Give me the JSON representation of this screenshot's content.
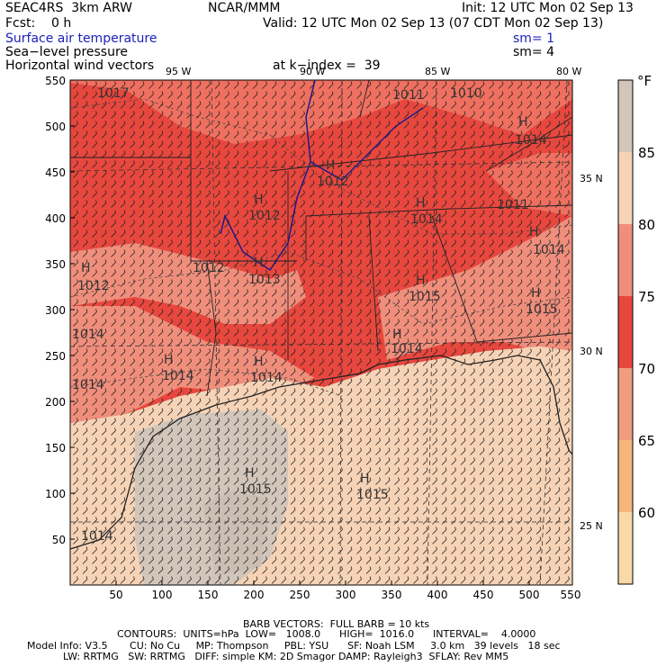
{
  "header": {
    "model": "SEAC4RS  3km ARW",
    "center": "NCAR/MMM",
    "init": "Init: 12 UTC Mon 02 Sep 13",
    "fcst": "Fcst:    0 h",
    "valid": "Valid: 12 UTC Mon 02 Sep 13 (07 CDT Mon 02 Sep 13)",
    "field1": "Surface air temperature",
    "field1_sm": "sm= 1",
    "field2": "Sea−level pressure",
    "field2_sm": "sm= 4",
    "field3": "Horizontal wind vectors",
    "klevel": "at k−index =  39"
  },
  "axes": {
    "x_ticks": [
      "50",
      "100",
      "150",
      "200",
      "250",
      "300",
      "350",
      "400",
      "450",
      "500",
      "550"
    ],
    "y_ticks": [
      "550",
      "500",
      "450",
      "400",
      "350",
      "300",
      "250",
      "200",
      "150",
      "100",
      "50"
    ],
    "lon_labels": [
      "95 W",
      "90 W",
      "85 W",
      "80 W"
    ],
    "lat_labels": [
      "35 N",
      "30 N",
      "25 N"
    ]
  },
  "legend": {
    "unit": "°F",
    "labels": [
      "85",
      "80",
      "75",
      "70",
      "65",
      "60"
    ],
    "colors": [
      "#d2c6bb",
      "#f6d3b6",
      "#f08e7c",
      "#e8473e",
      "#ef9c80",
      "#f7b679",
      "#f9d9a8"
    ]
  },
  "isobars": [
    "1017",
    "1011",
    "1010",
    "1014",
    "1012",
    "1012",
    "1014",
    "1011",
    "1014",
    "1012",
    "1013",
    "1012",
    "1015",
    "1015",
    "1014",
    "1014",
    "1014",
    "1014",
    "1014",
    "1015",
    "1015",
    "1014"
  ],
  "highs": [
    "H",
    "H",
    "H",
    "H",
    "H",
    "H",
    "H",
    "H",
    "H",
    "H",
    "H",
    "H",
    "H",
    "H"
  ],
  "footer": {
    "barb": "BARB VECTORS:  FULL BARB = 10 kts",
    "contours": "CONTOURS:  UNITS=hPa  LOW=   1008.0      HIGH=  1016.0      INTERVAL=    4.0000",
    "info1": "Model Info: V3.5       CU: No Cu     MP: Thompson     PBL: YSU      SF: Noah LSM     3.0 km   39 levels   18 sec",
    "info2": "LW: RRTMG   SW: RRTMG   DIFF: simple KM: 2D Smagor DAMP: Rayleigh3  SFLAY: Rev MM5"
  }
}
